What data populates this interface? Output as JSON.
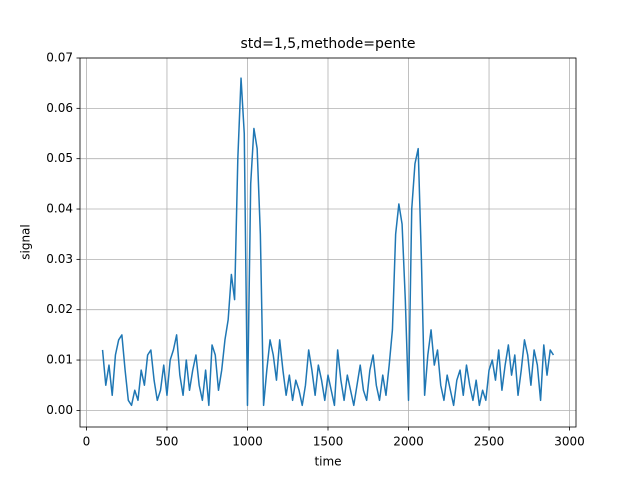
{
  "chart_data": {
    "type": "line",
    "title": "std=1,5,methode=pente",
    "x_label": "time",
    "y_label": "signal",
    "x": [
      100,
      120,
      140,
      160,
      180,
      200,
      220,
      240,
      260,
      280,
      300,
      320,
      340,
      360,
      380,
      400,
      420,
      440,
      460,
      480,
      500,
      520,
      540,
      560,
      580,
      600,
      620,
      640,
      660,
      680,
      700,
      720,
      740,
      760,
      780,
      800,
      820,
      840,
      860,
      880,
      900,
      920,
      940,
      960,
      980,
      1000,
      1020,
      1040,
      1060,
      1080,
      1100,
      1120,
      1140,
      1160,
      1180,
      1200,
      1220,
      1240,
      1260,
      1280,
      1300,
      1320,
      1340,
      1360,
      1380,
      1400,
      1420,
      1440,
      1460,
      1480,
      1500,
      1520,
      1540,
      1560,
      1580,
      1600,
      1620,
      1640,
      1660,
      1680,
      1700,
      1720,
      1740,
      1760,
      1780,
      1800,
      1820,
      1840,
      1860,
      1880,
      1900,
      1920,
      1940,
      1960,
      1980,
      2000,
      2020,
      2040,
      2060,
      2080,
      2100,
      2120,
      2140,
      2160,
      2180,
      2200,
      2220,
      2240,
      2260,
      2280,
      2300,
      2320,
      2340,
      2360,
      2380,
      2400,
      2420,
      2440,
      2460,
      2480,
      2500,
      2520,
      2540,
      2560,
      2580,
      2600,
      2620,
      2640,
      2660,
      2680,
      2700,
      2720,
      2740,
      2760,
      2780,
      2800,
      2820,
      2840,
      2860,
      2880,
      2900
    ],
    "series": [
      {
        "name": "signal",
        "color": "#1f77b4",
        "values": [
          0.012,
          0.005,
          0.009,
          0.003,
          0.011,
          0.014,
          0.015,
          0.008,
          0.002,
          0.001,
          0.004,
          0.002,
          0.008,
          0.005,
          0.011,
          0.012,
          0.006,
          0.002,
          0.004,
          0.009,
          0.003,
          0.01,
          0.012,
          0.015,
          0.007,
          0.003,
          0.01,
          0.004,
          0.008,
          0.011,
          0.005,
          0.002,
          0.008,
          0.001,
          0.013,
          0.011,
          0.004,
          0.008,
          0.014,
          0.018,
          0.027,
          0.022,
          0.05,
          0.066,
          0.055,
          0.001,
          0.045,
          0.056,
          0.052,
          0.035,
          0.001,
          0.008,
          0.014,
          0.011,
          0.006,
          0.014,
          0.008,
          0.003,
          0.007,
          0.002,
          0.006,
          0.004,
          0.001,
          0.005,
          0.012,
          0.008,
          0.003,
          0.009,
          0.006,
          0.002,
          0.007,
          0.004,
          0.001,
          0.012,
          0.006,
          0.002,
          0.007,
          0.004,
          0.001,
          0.005,
          0.009,
          0.004,
          0.002,
          0.008,
          0.011,
          0.005,
          0.002,
          0.007,
          0.003,
          0.009,
          0.016,
          0.035,
          0.041,
          0.037,
          0.022,
          0.002,
          0.04,
          0.049,
          0.052,
          0.03,
          0.003,
          0.011,
          0.016,
          0.009,
          0.012,
          0.005,
          0.002,
          0.007,
          0.004,
          0.001,
          0.006,
          0.008,
          0.003,
          0.009,
          0.005,
          0.002,
          0.006,
          0.001,
          0.004,
          0.002,
          0.008,
          0.01,
          0.006,
          0.012,
          0.004,
          0.009,
          0.013,
          0.007,
          0.011,
          0.003,
          0.008,
          0.014,
          0.011,
          0.005,
          0.012,
          0.009,
          0.002,
          0.013,
          0.007,
          0.012,
          0.011
        ]
      }
    ],
    "xlim": [
      -40,
      3040
    ],
    "xticks": [
      0,
      500,
      1000,
      1500,
      2000,
      2500,
      3000
    ],
    "ylim": [
      -0.0033,
      0.07
    ],
    "yticks": [
      {
        "value": 0,
        "label": "0.00"
      },
      0.01,
      0.02,
      0.03,
      0.04,
      0.05,
      0.06,
      0.07
    ],
    "grid": true
  }
}
